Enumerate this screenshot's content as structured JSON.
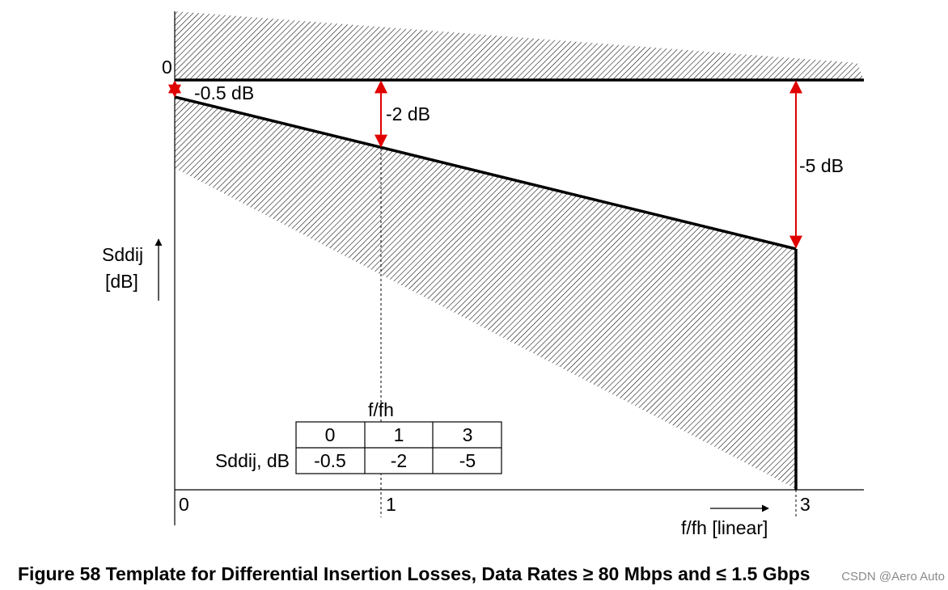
{
  "chart_data": {
    "type": "template",
    "x_axis": {
      "label": "f/fh [linear]",
      "ticks": [
        {
          "value": 0,
          "label": "0"
        },
        {
          "value": 1,
          "label": "1"
        },
        {
          "value": 3,
          "label": "3"
        }
      ]
    },
    "y_axis": {
      "label_line1": "Sddij",
      "label_line2": "[dB]",
      "zero_label": "0"
    },
    "limit_line": {
      "points": [
        {
          "f_fh": 0,
          "sddij_db": -0.5
        },
        {
          "f_fh": 1,
          "sddij_db": -2
        },
        {
          "f_fh": 3,
          "sddij_db": -5
        }
      ]
    },
    "annotations": [
      {
        "f_fh": 0,
        "text": "-0.5 dB"
      },
      {
        "f_fh": 1,
        "text": "-2 dB"
      },
      {
        "f_fh": 3,
        "text": "-5 dB"
      }
    ],
    "table": {
      "header_caption": "f/fh",
      "columns": [
        "0",
        "1",
        "3"
      ],
      "row_label": "Sddij, dB",
      "values": [
        "-0.5",
        "-2",
        "-5"
      ]
    }
  },
  "caption": "Figure 58 Template for Differential Insertion Losses, Data Rates ≥ 80 Mbps and ≤ 1.5 Gbps",
  "watermark": "CSDN @Aero Auto",
  "colors": {
    "line": "#000000",
    "arrow": "#e00000",
    "hatch": "#000000"
  }
}
